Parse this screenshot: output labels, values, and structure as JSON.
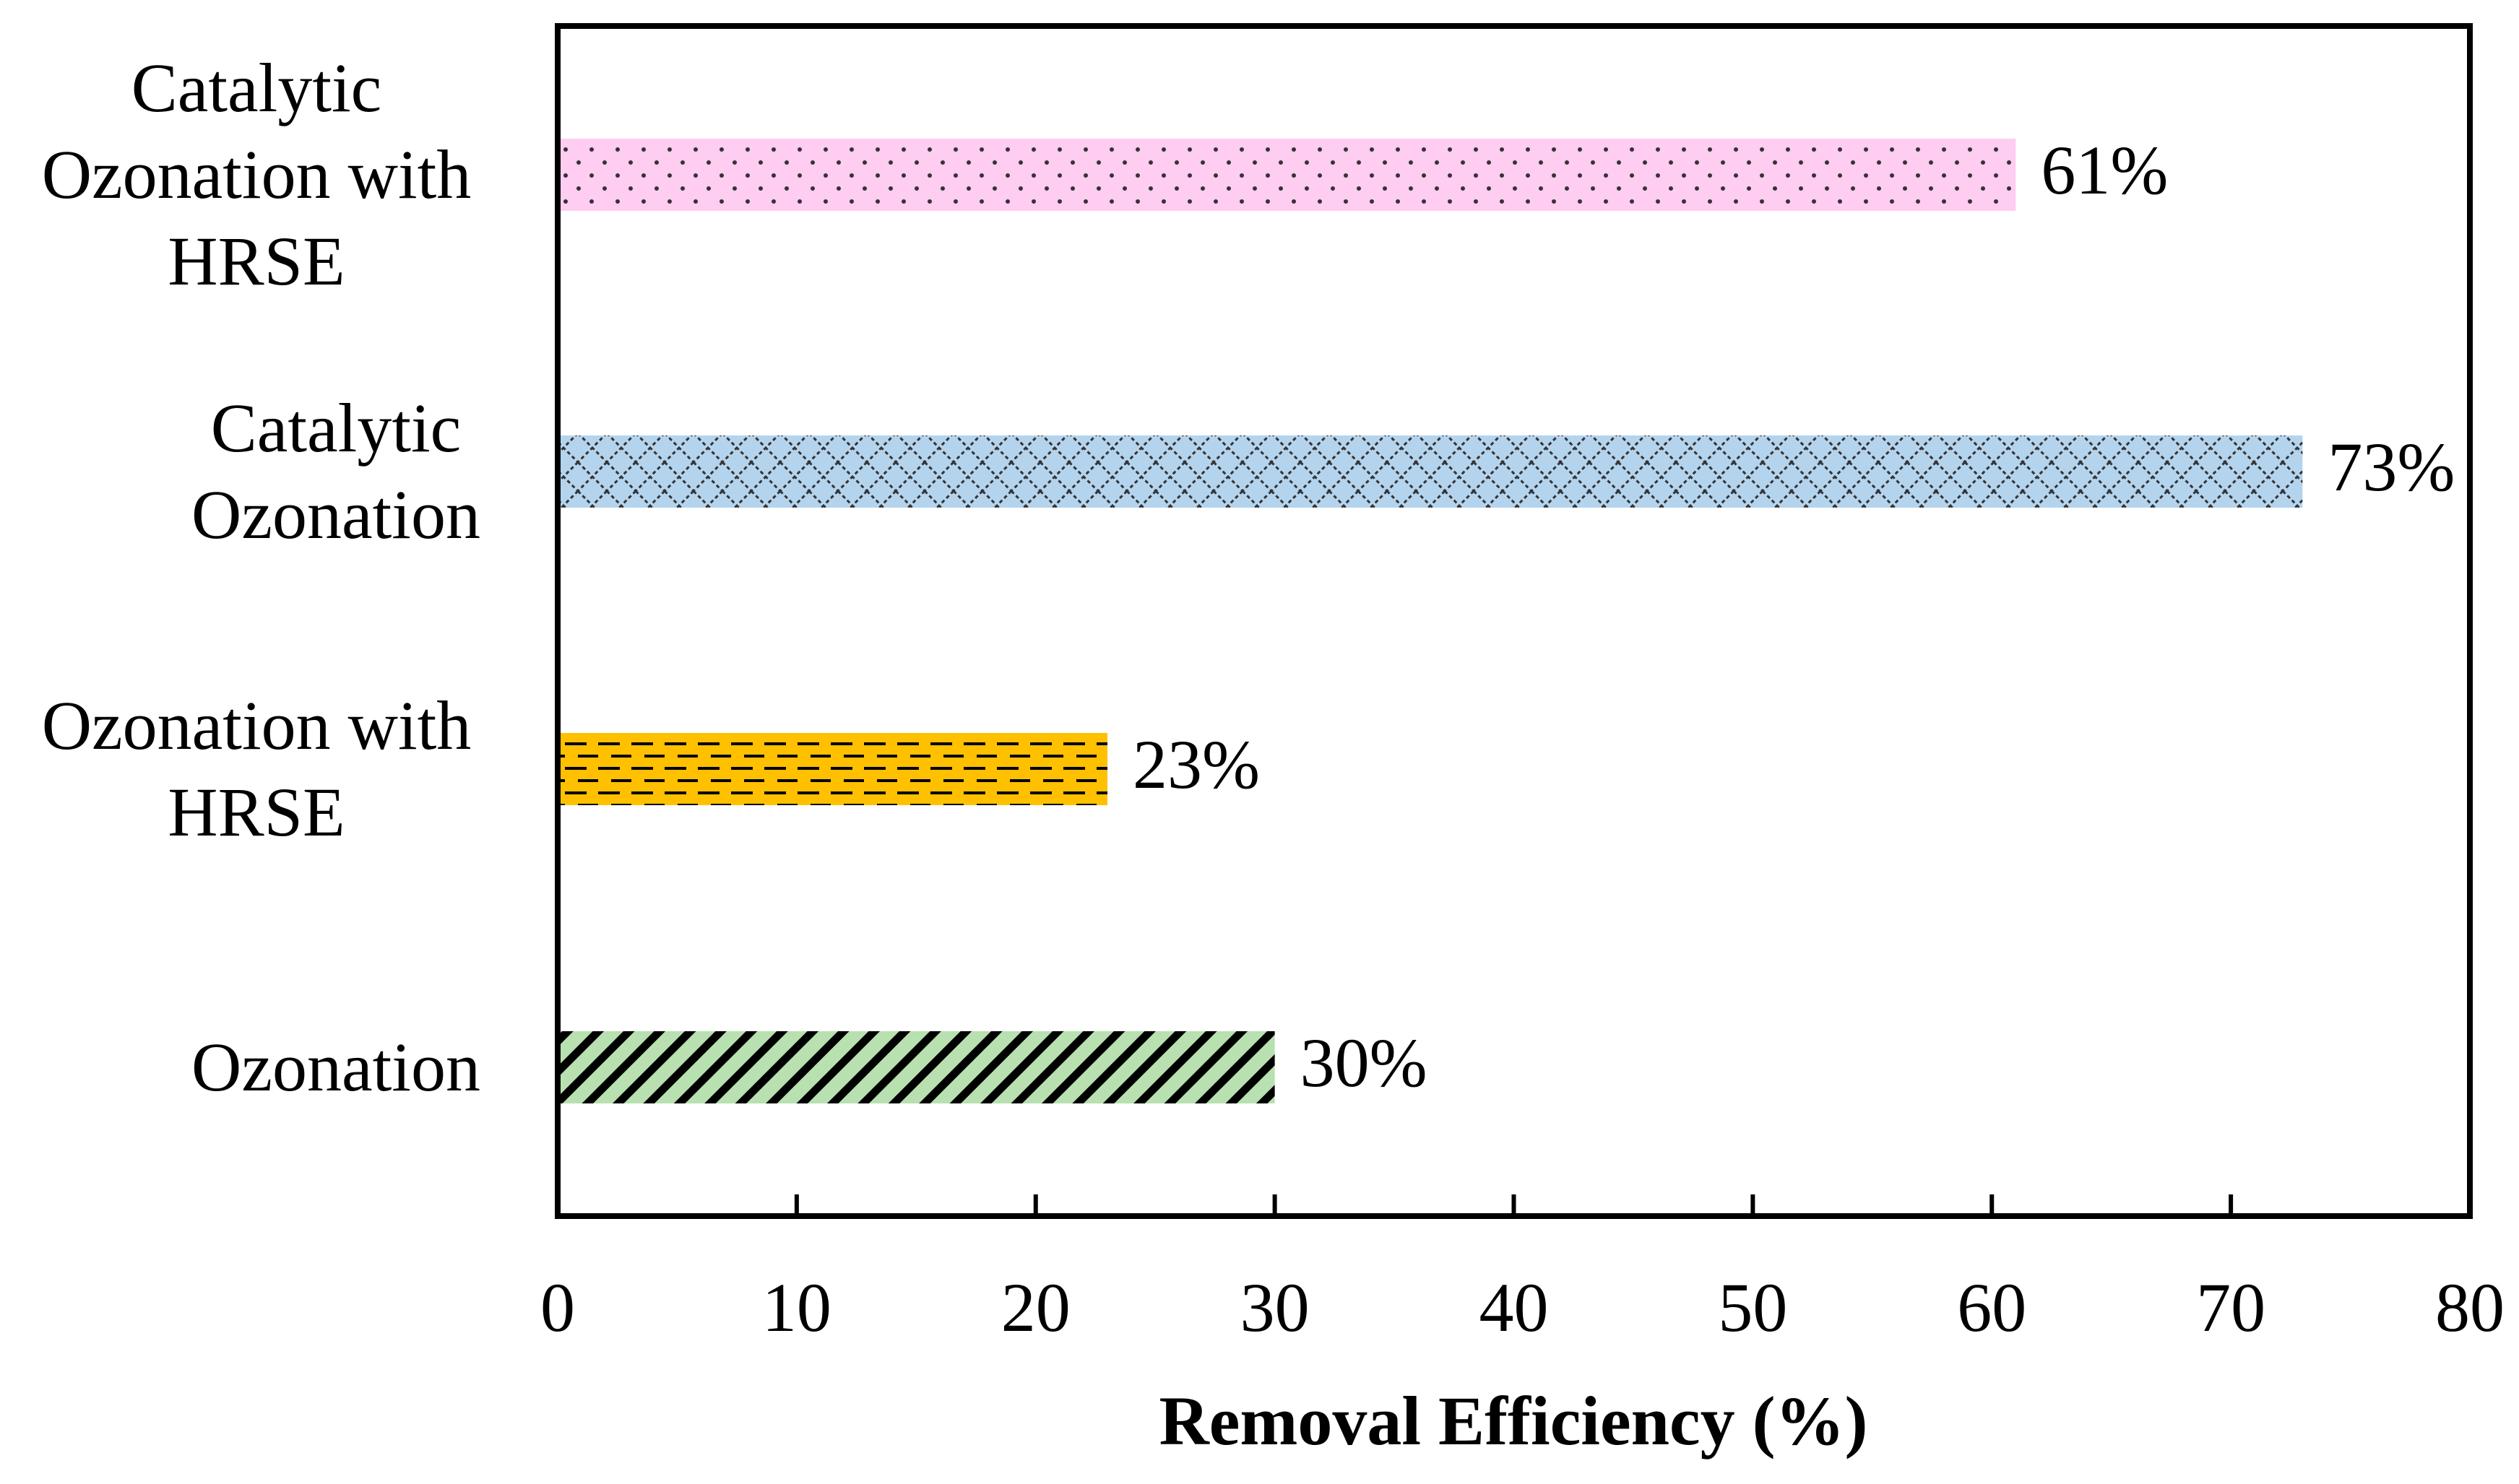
{
  "chart_data": {
    "type": "bar",
    "orientation": "horizontal",
    "title": "",
    "xlabel": "Removal Efficiency (%)",
    "ylabel": "",
    "xlim": [
      0,
      80
    ],
    "xticks": [
      0,
      10,
      20,
      30,
      40,
      50,
      60,
      70,
      80
    ],
    "grid": false,
    "categories": [
      [
        "Catalytic",
        "Ozonation with",
        "HRSE"
      ],
      [
        "Catalytic",
        "Ozonation"
      ],
      [
        "Ozonation with",
        "HRSE"
      ],
      [
        "Ozonation"
      ]
    ],
    "values": [
      61,
      73,
      23,
      30
    ],
    "data_labels": [
      "61%",
      "73%",
      "23%",
      "30%"
    ],
    "bar_styles": [
      {
        "fill": "#ffccf2",
        "pattern": "dots"
      },
      {
        "fill": "#b4d4ee",
        "pattern": "crosshatch"
      },
      {
        "fill": "#ffc000",
        "pattern": "dashed-horizontal"
      },
      {
        "fill": "#b8e0b0",
        "pattern": "diagonal-stripes"
      }
    ]
  }
}
